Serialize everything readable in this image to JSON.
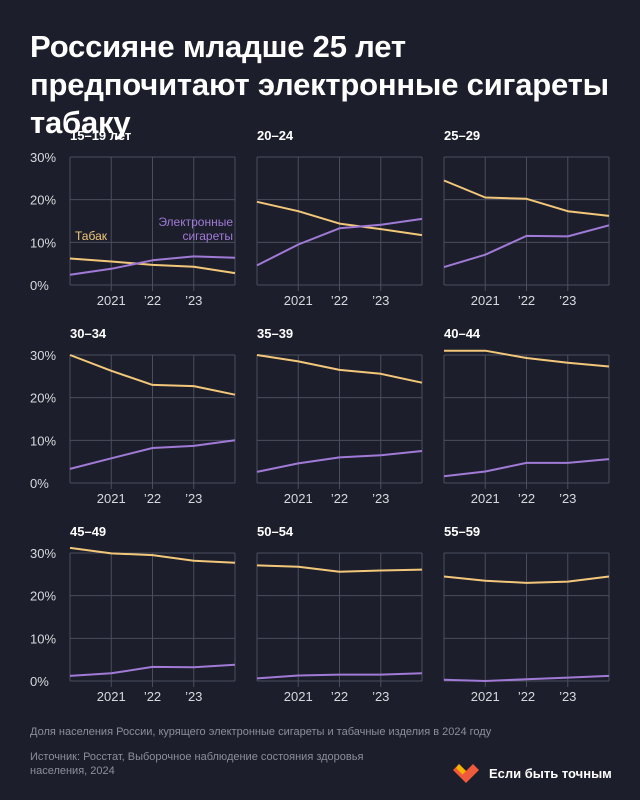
{
  "title": "Россияне младше 25 лет предпочитают электронные сигареты табаку",
  "note": "Доля населения России, курящего электронные сигареты и табачные изделия в 2024 году",
  "source": "Источник: Росстат, Выборочное наблюдение состояния здоровья населения, 2024",
  "brand": "Если быть точным",
  "colors": {
    "background": "#1c1f2b",
    "tobacco": "#f2c77a",
    "ecig": "#a07ad6",
    "grid": "#4a4e5c"
  },
  "chart_data": {
    "type": "line",
    "x": [
      2020,
      2021,
      2022,
      2023,
      2024
    ],
    "x_tick_labels": [
      "2021",
      "’22",
      "’23"
    ],
    "x_tick_values": [
      2021,
      2022,
      2023
    ],
    "y_ticks": [
      "30%",
      "20%",
      "10%",
      "0%"
    ],
    "ylim": [
      0,
      30
    ],
    "series_labels": {
      "tobacco": "Табак",
      "ecig": "Электронные сигареты"
    },
    "panels": [
      {
        "title": "15–19 лет",
        "tobacco": [
          6.2,
          5.5,
          4.7,
          4.3,
          2.8
        ],
        "ecig": [
          2.4,
          3.8,
          5.8,
          6.7,
          6.4
        ]
      },
      {
        "title": "20–24",
        "tobacco": [
          19.5,
          17.3,
          14.4,
          13.1,
          11.7
        ],
        "ecig": [
          4.6,
          9.5,
          13.3,
          14.1,
          15.5
        ]
      },
      {
        "title": "25–29",
        "tobacco": [
          24.5,
          20.5,
          20.2,
          17.3,
          16.2
        ],
        "ecig": [
          4.2,
          7.1,
          11.5,
          11.4,
          14.0
        ]
      },
      {
        "title": "30–34",
        "tobacco": [
          30.0,
          26.3,
          23.0,
          22.7,
          20.7
        ],
        "ecig": [
          3.3,
          5.8,
          8.2,
          8.7,
          10.0
        ]
      },
      {
        "title": "35–39",
        "tobacco": [
          30.0,
          28.5,
          26.5,
          25.6,
          23.5
        ],
        "ecig": [
          2.6,
          4.6,
          6.0,
          6.5,
          7.5
        ]
      },
      {
        "title": "40–44",
        "tobacco": [
          31.0,
          31.0,
          29.3,
          28.2,
          27.3
        ],
        "ecig": [
          1.6,
          2.7,
          4.7,
          4.7,
          5.6
        ]
      },
      {
        "title": "45–49",
        "tobacco": [
          31.2,
          29.9,
          29.5,
          28.2,
          27.7
        ],
        "ecig": [
          1.2,
          1.8,
          3.3,
          3.2,
          3.8
        ]
      },
      {
        "title": "50–54",
        "tobacco": [
          27.1,
          26.8,
          25.6,
          25.9,
          26.1
        ],
        "ecig": [
          0.6,
          1.3,
          1.5,
          1.5,
          1.8
        ]
      },
      {
        "title": "55–59",
        "tobacco": [
          24.5,
          23.5,
          23.0,
          23.3,
          24.5
        ],
        "ecig": [
          0.3,
          0.0,
          0.4,
          0.8,
          1.2
        ]
      }
    ]
  }
}
